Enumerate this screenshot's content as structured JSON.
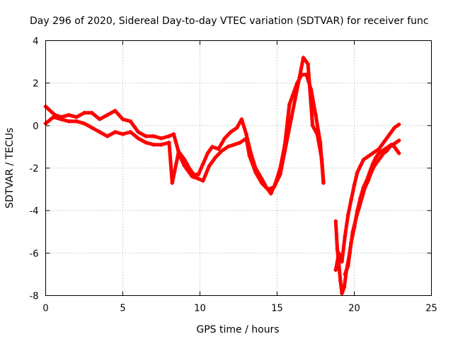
{
  "chart_data": {
    "type": "scatter",
    "title": "Day 296 of 2020, Sidereal Day-to-day VTEC variation (SDTVAR) for receiver func",
    "xlabel": "GPS time / hours",
    "ylabel": "SDTVAR / TECUs",
    "xlim": [
      0,
      25
    ],
    "ylim": [
      -8,
      4
    ],
    "xticks": [
      0,
      5,
      10,
      15,
      20,
      25
    ],
    "yticks": [
      -8,
      -6,
      -4,
      -2,
      0,
      2,
      4
    ],
    "grid": true,
    "marker": "+",
    "color": "#ff0000",
    "series": [
      {
        "values": [
          [
            0.0,
            0.9
          ],
          [
            0.3,
            0.7
          ],
          [
            0.6,
            0.5
          ],
          [
            1.0,
            0.4
          ],
          [
            1.5,
            0.5
          ],
          [
            2.0,
            0.4
          ],
          [
            2.5,
            0.6
          ],
          [
            3.0,
            0.6
          ],
          [
            3.5,
            0.3
          ],
          [
            4.0,
            0.5
          ],
          [
            4.5,
            0.7
          ],
          [
            5.0,
            0.3
          ],
          [
            5.5,
            0.2
          ],
          [
            6.0,
            -0.3
          ],
          [
            6.5,
            -0.5
          ],
          [
            7.0,
            -0.5
          ],
          [
            7.5,
            -0.6
          ],
          [
            8.0,
            -0.5
          ],
          [
            8.3,
            -0.4
          ],
          [
            8.6,
            -1.2
          ],
          [
            9.0,
            -1.6
          ],
          [
            9.3,
            -2.0
          ],
          [
            9.6,
            -2.3
          ],
          [
            9.9,
            -2.3
          ],
          [
            10.2,
            -1.8
          ],
          [
            10.5,
            -1.3
          ],
          [
            10.8,
            -1.0
          ],
          [
            11.2,
            -1.1
          ],
          [
            11.6,
            -0.6
          ],
          [
            12.0,
            -0.3
          ],
          [
            12.4,
            -0.1
          ],
          [
            12.7,
            0.3
          ],
          [
            13.0,
            -0.4
          ],
          [
            13.3,
            -1.3
          ],
          [
            13.6,
            -2.0
          ],
          [
            14.0,
            -2.5
          ],
          [
            14.3,
            -2.9
          ],
          [
            14.6,
            -3.2
          ],
          [
            14.9,
            -2.7
          ],
          [
            15.2,
            -2.0
          ],
          [
            15.5,
            -0.9
          ],
          [
            15.8,
            1.0
          ],
          [
            16.0,
            1.4
          ],
          [
            16.3,
            2.0
          ],
          [
            16.6,
            2.4
          ],
          [
            16.9,
            2.4
          ],
          [
            17.2,
            1.7
          ],
          [
            17.5,
            0.5
          ],
          [
            17.8,
            -0.8
          ],
          [
            18.0,
            -2.7
          ]
        ]
      },
      {
        "values": [
          [
            0.0,
            0.1
          ],
          [
            0.5,
            0.4
          ],
          [
            1.0,
            0.3
          ],
          [
            1.5,
            0.2
          ],
          [
            2.0,
            0.2
          ],
          [
            2.5,
            0.1
          ],
          [
            3.0,
            -0.1
          ],
          [
            3.5,
            -0.3
          ],
          [
            4.0,
            -0.5
          ],
          [
            4.5,
            -0.3
          ],
          [
            5.0,
            -0.4
          ],
          [
            5.5,
            -0.3
          ],
          [
            6.0,
            -0.6
          ],
          [
            6.5,
            -0.8
          ],
          [
            7.0,
            -0.9
          ],
          [
            7.5,
            -0.9
          ],
          [
            8.0,
            -0.8
          ],
          [
            8.2,
            -2.7
          ],
          [
            8.6,
            -1.3
          ],
          [
            9.0,
            -1.9
          ],
          [
            9.5,
            -2.4
          ],
          [
            9.9,
            -2.5
          ],
          [
            10.2,
            -2.6
          ],
          [
            10.6,
            -1.9
          ],
          [
            11.0,
            -1.5
          ],
          [
            11.4,
            -1.2
          ],
          [
            11.8,
            -1.0
          ],
          [
            12.2,
            -0.9
          ],
          [
            12.6,
            -0.8
          ],
          [
            13.0,
            -0.6
          ],
          [
            13.2,
            -1.4
          ],
          [
            13.6,
            -2.2
          ],
          [
            14.0,
            -2.7
          ],
          [
            14.4,
            -3.0
          ],
          [
            14.8,
            -2.9
          ],
          [
            15.2,
            -2.3
          ],
          [
            15.5,
            -1.2
          ],
          [
            16.7,
            3.2
          ],
          [
            17.0,
            2.9
          ],
          [
            17.3,
            0.0
          ],
          [
            17.6,
            -0.4
          ],
          [
            17.9,
            -1.6
          ],
          [
            18.0,
            -2.6
          ]
        ]
      },
      {
        "values": [
          [
            18.8,
            -4.5
          ],
          [
            18.9,
            -5.8
          ],
          [
            19.0,
            -6.5
          ],
          [
            19.1,
            -7.3
          ],
          [
            19.2,
            -7.9
          ],
          [
            19.35,
            -7.6
          ],
          [
            19.5,
            -6.8
          ],
          [
            19.7,
            -6.0
          ],
          [
            19.9,
            -5.0
          ],
          [
            20.1,
            -4.4
          ],
          [
            20.3,
            -3.9
          ],
          [
            20.5,
            -3.4
          ],
          [
            20.7,
            -2.9
          ],
          [
            20.9,
            -2.6
          ],
          [
            21.1,
            -2.2
          ],
          [
            21.3,
            -1.9
          ],
          [
            21.5,
            -1.7
          ],
          [
            21.7,
            -1.5
          ],
          [
            21.9,
            -1.3
          ],
          [
            22.1,
            -1.2
          ],
          [
            22.3,
            -1.0
          ],
          [
            22.5,
            -0.9
          ],
          [
            22.7,
            -0.8
          ],
          [
            22.9,
            -0.7
          ]
        ]
      },
      {
        "values": [
          [
            18.8,
            -6.8
          ],
          [
            19.0,
            -6.0
          ],
          [
            19.2,
            -6.4
          ],
          [
            19.4,
            -5.2
          ],
          [
            19.6,
            -4.2
          ],
          [
            19.8,
            -3.5
          ],
          [
            20.0,
            -2.8
          ],
          [
            20.2,
            -2.2
          ],
          [
            20.4,
            -1.9
          ],
          [
            20.6,
            -1.6
          ],
          [
            20.8,
            -1.5
          ],
          [
            21.0,
            -1.4
          ],
          [
            21.2,
            -1.3
          ],
          [
            21.4,
            -1.2
          ],
          [
            21.6,
            -1.1
          ],
          [
            21.8,
            -0.9
          ],
          [
            22.0,
            -0.7
          ],
          [
            22.2,
            -0.5
          ],
          [
            22.4,
            -0.3
          ],
          [
            22.6,
            -0.1
          ],
          [
            22.8,
            0.0
          ],
          [
            22.9,
            0.05
          ]
        ]
      },
      {
        "values": [
          [
            19.4,
            -7.0
          ],
          [
            19.6,
            -6.6
          ],
          [
            19.8,
            -5.5
          ],
          [
            20.0,
            -4.8
          ],
          [
            20.2,
            -4.0
          ],
          [
            20.4,
            -3.4
          ],
          [
            20.6,
            -2.9
          ],
          [
            20.8,
            -2.6
          ],
          [
            21.0,
            -2.2
          ],
          [
            21.2,
            -1.8
          ],
          [
            21.4,
            -1.5
          ],
          [
            21.6,
            -1.3
          ],
          [
            21.8,
            -1.2
          ],
          [
            22.0,
            -1.1
          ],
          [
            22.2,
            -1.0
          ],
          [
            22.4,
            -0.9
          ],
          [
            22.6,
            -1.0
          ],
          [
            22.8,
            -1.2
          ],
          [
            22.9,
            -1.3
          ]
        ]
      }
    ]
  }
}
